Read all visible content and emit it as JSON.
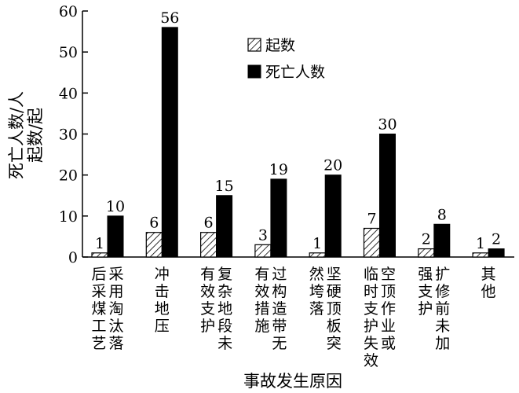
{
  "chart_data": {
    "type": "bar",
    "xlabel": "事故发生原因",
    "ylabel_lines": [
      "死亡人数/人",
      "起数/起"
    ],
    "ylim": [
      0,
      60
    ],
    "yticks": [
      0,
      10,
      20,
      30,
      40,
      50,
      60
    ],
    "grid": false,
    "legend_position": "top-center",
    "categories": [
      {
        "columns": [
          "后采煤工艺",
          "采用淘汰落"
        ]
      },
      {
        "columns": [
          "冲击地压"
        ]
      },
      {
        "columns": [
          "有效支护",
          "复杂地段未"
        ]
      },
      {
        "columns": [
          "有效措施",
          "过构造带无"
        ]
      },
      {
        "columns": [
          "然垮落",
          "坚硬顶板突"
        ]
      },
      {
        "columns": [
          "临时支护失效",
          "空顶作业或"
        ]
      },
      {
        "columns": [
          "强支护",
          "扩修前未加"
        ]
      },
      {
        "columns": [
          "其他"
        ]
      }
    ],
    "series": [
      {
        "name": "起数",
        "pattern": "hatched",
        "values": [
          1,
          6,
          6,
          3,
          1,
          7,
          2,
          1
        ]
      },
      {
        "name": "死亡人数",
        "pattern": "solid",
        "color": "#000000",
        "values": [
          10,
          56,
          15,
          19,
          20,
          30,
          8,
          2
        ]
      }
    ]
  }
}
